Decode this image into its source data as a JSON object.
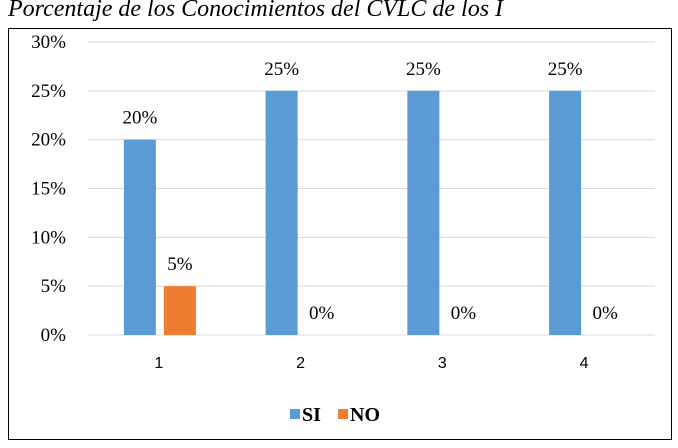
{
  "chart_data": {
    "type": "bar",
    "title": "Porcentaje de los Conocimientos del CVLC de los I",
    "categories": [
      "1",
      "2",
      "3",
      "4"
    ],
    "series": [
      {
        "name": "SI",
        "color": "#5b9bd5",
        "values": [
          20,
          25,
          25,
          25
        ],
        "value_labels": [
          "20%",
          "25%",
          "25%",
          "25%"
        ]
      },
      {
        "name": "NO",
        "color": "#ed7d31",
        "values": [
          5,
          0,
          0,
          0
        ],
        "value_labels": [
          "5%",
          "0%",
          "0%",
          "0%"
        ]
      }
    ],
    "ylim": [
      0,
      30
    ],
    "yticks": [
      {
        "value": 0,
        "label": "0%"
      },
      {
        "value": 5,
        "label": "5%"
      },
      {
        "value": 10,
        "label": "10%"
      },
      {
        "value": 15,
        "label": "15%"
      },
      {
        "value": 20,
        "label": "20%"
      },
      {
        "value": 25,
        "label": "25%"
      },
      {
        "value": 30,
        "label": "30%"
      }
    ],
    "grid": true,
    "legend": "bottom"
  }
}
